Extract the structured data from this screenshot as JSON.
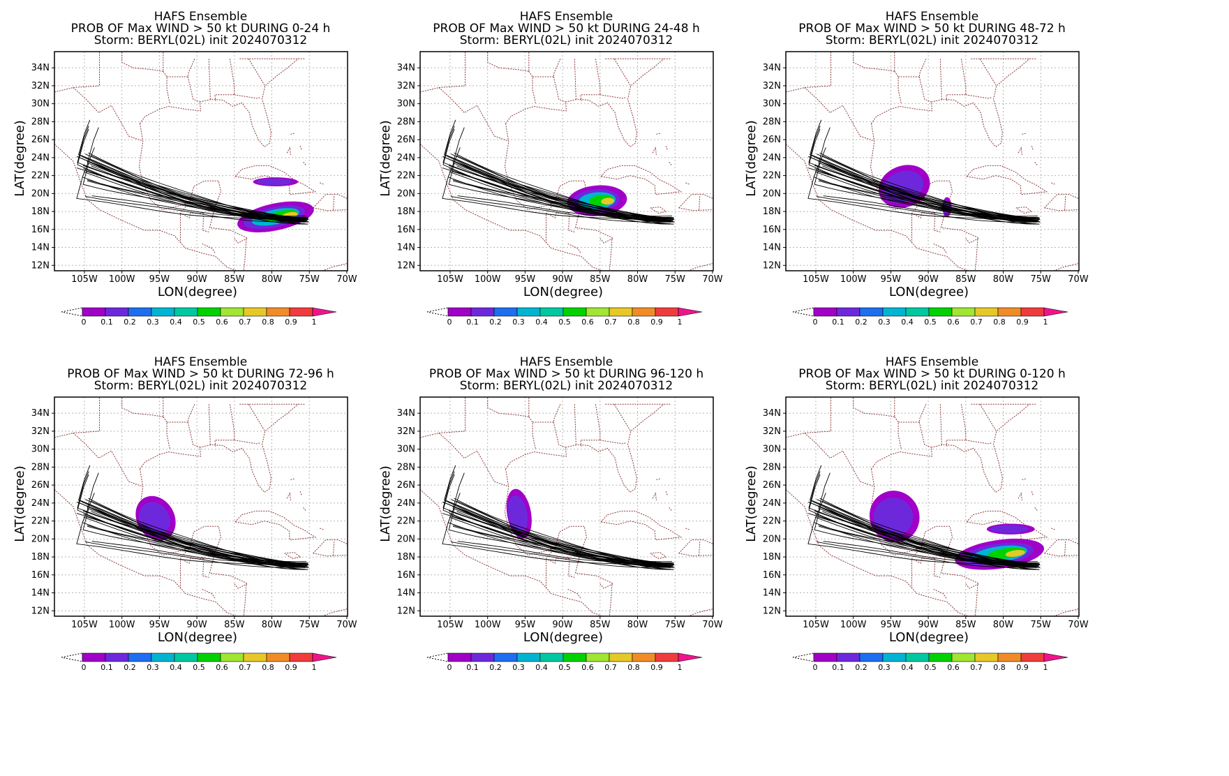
{
  "figure": {
    "panels": [
      {
        "title": "HAFS Ensemble",
        "subtitle": "PROB OF Max WIND > 50 kt DURING  0-24 h",
        "storm": "Storm: BERYL(02L) init 2024070312",
        "period": "0-24"
      },
      {
        "title": "HAFS Ensemble",
        "subtitle": "PROB OF Max WIND > 50 kt DURING 24-48 h",
        "storm": "Storm: BERYL(02L) init 2024070312",
        "period": "24-48"
      },
      {
        "title": "HAFS Ensemble",
        "subtitle": "PROB OF Max WIND > 50 kt DURING 48-72 h",
        "storm": "Storm: BERYL(02L) init 2024070312",
        "period": "48-72"
      },
      {
        "title": "HAFS Ensemble",
        "subtitle": "PROB OF Max WIND > 50 kt DURING 72-96 h",
        "storm": "Storm: BERYL(02L) init 2024070312",
        "period": "72-96"
      },
      {
        "title": "HAFS Ensemble",
        "subtitle": "PROB OF Max WIND > 50 kt DURING 96-120 h",
        "storm": "Storm: BERYL(02L) init 2024070312",
        "period": "96-120"
      },
      {
        "title": "HAFS Ensemble",
        "subtitle": "PROB OF Max WIND > 50 kt DURING 0-120 h",
        "storm": "Storm: BERYL(02L) init 2024070312",
        "period": "0-120"
      }
    ],
    "xlabel": "LON(degree)",
    "ylabel": "LAT(degree)",
    "lon_ticks": [
      "105W",
      "100W",
      "95W",
      "90W",
      "85W",
      "80W",
      "75W",
      "70W"
    ],
    "lat_ticks": [
      "12N",
      "14N",
      "16N",
      "18N",
      "20N",
      "22N",
      "24N",
      "26N",
      "28N",
      "30N",
      "32N",
      "34N"
    ],
    "colorbar": {
      "labels": [
        "0",
        "0.1",
        "0.2",
        "0.3",
        "0.4",
        "0.5",
        "0.6",
        "0.7",
        "0.8",
        "0.9",
        "1"
      ],
      "colors": [
        "#a000c8",
        "#6e28dc",
        "#1e6ef0",
        "#00b4d2",
        "#00c8a0",
        "#00d200",
        "#a0e632",
        "#e6c828",
        "#f08c28",
        "#f03c3c",
        "#f0148c"
      ]
    },
    "style": {
      "track_color": "#000000",
      "boundary_color": "#8b3a3a",
      "grid_color": "#b4b4b4"
    }
  }
}
